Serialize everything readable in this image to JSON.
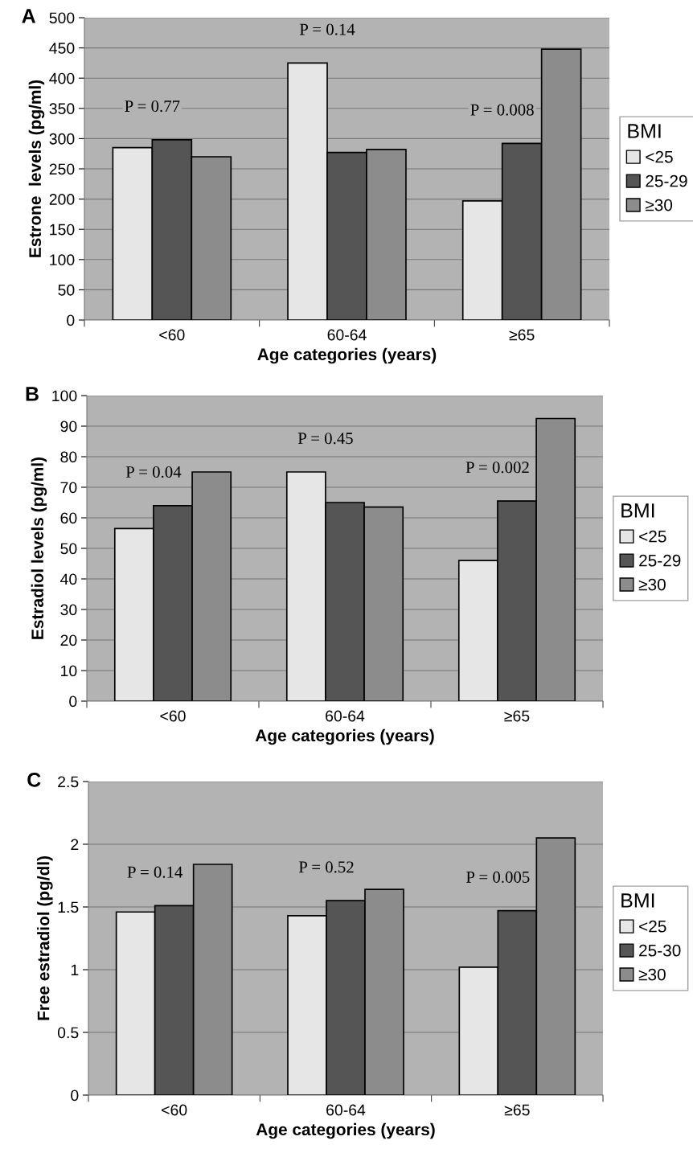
{
  "chart_data": [
    {
      "type": "bar",
      "title": "A",
      "xlabel": "Age categories (years)",
      "ylabel": "Estrone  levels (pg/ml)",
      "legend_title": "BMI",
      "legend": "right",
      "grid": "y",
      "categories": [
        "<60",
        "60-64",
        "≥65"
      ],
      "series": [
        {
          "name": "<25",
          "color": "#e6e6e6",
          "values": [
            285,
            425,
            197
          ]
        },
        {
          "name": "25-29",
          "color": "#555555",
          "values": [
            298,
            277,
            292
          ]
        },
        {
          "name": "≥30",
          "color": "#8c8c8c",
          "values": [
            270,
            282,
            448
          ]
        }
      ],
      "ylim": [
        0,
        500
      ],
      "yticks": [
        0,
        50,
        100,
        150,
        200,
        250,
        300,
        350,
        400,
        450,
        500
      ],
      "annotations": [
        "P = 0.77",
        "P = 0.14",
        "P = 0.008"
      ]
    },
    {
      "type": "bar",
      "title": "B",
      "xlabel": "Age categories (years)",
      "ylabel": "Estradiol levels (pg/ml)",
      "legend_title": "BMI",
      "legend": "right",
      "grid": "y",
      "categories": [
        "<60",
        "60-64",
        "≥65"
      ],
      "series": [
        {
          "name": "<25",
          "color": "#e6e6e6",
          "values": [
            56.5,
            75,
            46
          ]
        },
        {
          "name": "25-29",
          "color": "#555555",
          "values": [
            64,
            65,
            65.5
          ]
        },
        {
          "name": "≥30",
          "color": "#8c8c8c",
          "values": [
            75,
            63.5,
            92.5
          ]
        }
      ],
      "ylim": [
        0,
        100
      ],
      "yticks": [
        0,
        10,
        20,
        30,
        40,
        50,
        60,
        70,
        80,
        90,
        100
      ],
      "annotations": [
        "P = 0.04",
        "P = 0.45",
        "P = 0.002"
      ]
    },
    {
      "type": "bar",
      "title": "C",
      "xlabel": "Age categories (years)",
      "ylabel": "Free estradiol (pg/dl)",
      "legend_title": "BMI",
      "legend": "right",
      "grid": "y",
      "categories": [
        "<60",
        "60-64",
        "≥65"
      ],
      "series": [
        {
          "name": "<25",
          "color": "#e6e6e6",
          "values": [
            1.46,
            1.43,
            1.02
          ]
        },
        {
          "name": "25-30",
          "color": "#555555",
          "values": [
            1.51,
            1.55,
            1.47
          ]
        },
        {
          "name": "≥30",
          "color": "#8c8c8c",
          "values": [
            1.84,
            1.64,
            2.05
          ]
        }
      ],
      "ylim": [
        0,
        2.5
      ],
      "yticks": [
        0,
        0.5,
        1,
        1.5,
        2,
        2.5
      ],
      "annotations": [
        "P = 0.14",
        "P = 0.52",
        "P = 0.005"
      ]
    }
  ]
}
